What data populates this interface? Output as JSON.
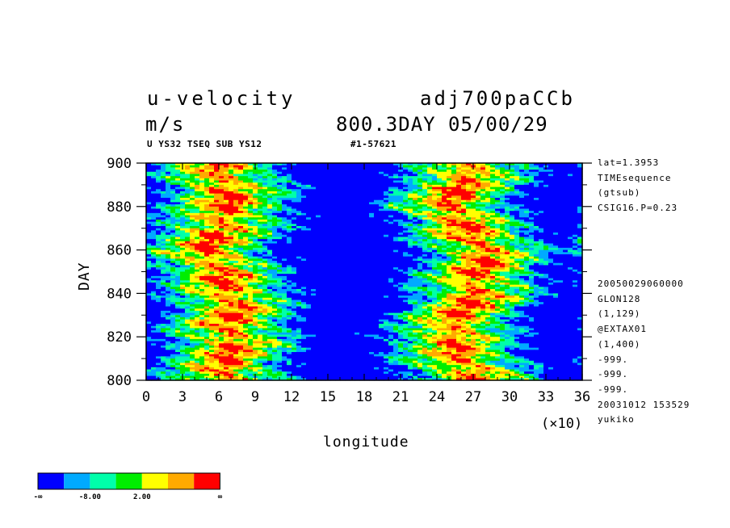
{
  "header": {
    "variable": "u-velocity",
    "units": "m/s",
    "experiment": "adj700paCCb",
    "time": "800.3DAY 05/00/29",
    "sub_left": "U YS32 TSEQ SUB YS12",
    "sub_right": "#1-57621"
  },
  "info_top": [
    "lat=1.3953",
    "TIMEsequence",
    "(gtsub)",
    "CSIG16.P=0.23"
  ],
  "info_bottom": [
    "20050029060000",
    "GLON128",
    "(1,129)",
    "@EXTAX01",
    "(1,400)",
    "-999.",
    "-999.",
    "-999.",
    "20031012 153529",
    "yukiko"
  ],
  "colors": {
    "levels": [
      "#0000ff",
      "#00aaff",
      "#00ffaa",
      "#00ee00",
      "#ffff00",
      "#ffaa00",
      "#ff0000"
    ]
  },
  "colorbar": {
    "labels": [
      "-∞",
      "-8.00",
      "2.00",
      "∞"
    ]
  },
  "chart_data": {
    "type": "heatmap",
    "xlabel": "longitude",
    "ylabel": "DAY",
    "x_multiplier": "(×10)",
    "xlim": [
      0,
      36
    ],
    "ylim": [
      800,
      900
    ],
    "xticks": [
      "0",
      "3",
      "6",
      "9",
      "12",
      "15",
      "18",
      "21",
      "24",
      "27",
      "30",
      "33",
      "36"
    ],
    "yticks": [
      "800",
      "820",
      "840",
      "860",
      "880",
      "900"
    ],
    "bands": [
      {
        "day": 800,
        "center": 6.5
      },
      {
        "day": 820,
        "center": 7.0
      },
      {
        "day": 840,
        "center": 7.0
      },
      {
        "day": 860,
        "center": 5.0
      },
      {
        "day": 880,
        "center": 7.0
      },
      {
        "day": 900,
        "center": 6.0
      }
    ],
    "bands2": [
      {
        "day": 800,
        "center": 27.0
      },
      {
        "day": 820,
        "center": 25.0
      },
      {
        "day": 840,
        "center": 27.0
      },
      {
        "day": 860,
        "center": 28.0
      },
      {
        "day": 880,
        "center": 25.0
      },
      {
        "day": 900,
        "center": 27.0
      }
    ]
  }
}
